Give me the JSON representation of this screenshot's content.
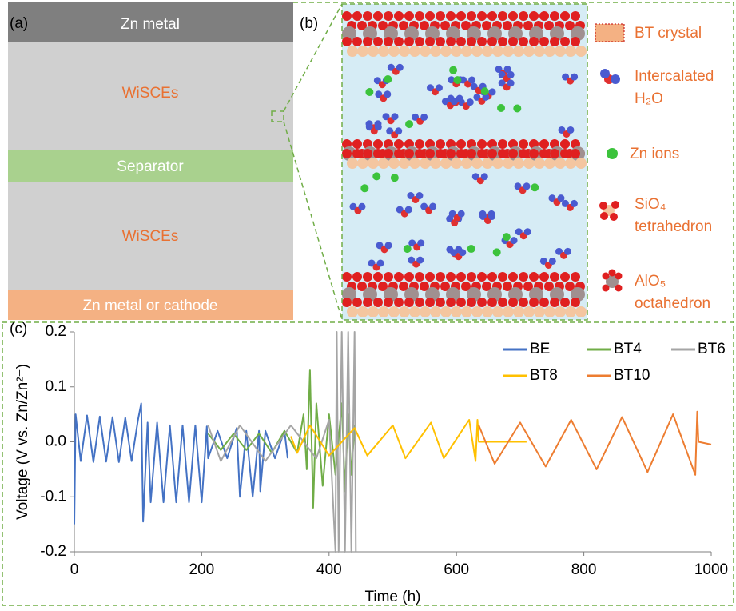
{
  "panel_a": {
    "label": "(a)",
    "layers": [
      "Zn metal",
      "WiSCEs",
      "Separator",
      "WiSCEs",
      "Zn metal or cathode"
    ]
  },
  "panel_b": {
    "label": "(b)",
    "legend": [
      {
        "lines": [
          "BT crystal"
        ]
      },
      {
        "lines": [
          "Intercalated",
          "H₂O"
        ]
      },
      {
        "lines": [
          "Zn ions"
        ]
      },
      {
        "lines": [
          "SiO₄",
          "tetrahedron"
        ]
      },
      {
        "lines": [
          "AlO₅",
          "octahedron"
        ]
      }
    ]
  },
  "chart_data": {
    "type": "line",
    "label": "(c)",
    "xlabel": "Time (h)",
    "ylabel": "Voltage (V vs. Zn/Zn²⁺)",
    "xlim": [
      0,
      1000
    ],
    "ylim": [
      -0.2,
      0.2
    ],
    "xticks": [
      0,
      200,
      400,
      600,
      800,
      1000
    ],
    "yticks": [
      -0.2,
      -0.1,
      {
        "value": 0,
        "label": "0.0"
      },
      0.1,
      0.2
    ],
    "legend": "upper right",
    "series": [
      {
        "name": "BE",
        "color": "#4472c4",
        "x": [
          0,
          2,
          10,
          20,
          30,
          40,
          50,
          60,
          70,
          80,
          90,
          100,
          105,
          108,
          115,
          120,
          130,
          140,
          150,
          160,
          170,
          180,
          190,
          200,
          208,
          210,
          225,
          240,
          255,
          260,
          270,
          280,
          290,
          292,
          300,
          315,
          330,
          335
        ],
        "values": [
          -0.15,
          0.05,
          -0.035,
          0.048,
          -0.037,
          0.046,
          -0.036,
          0.045,
          -0.037,
          0.044,
          -0.035,
          0.04,
          0.07,
          -0.145,
          0.035,
          -0.11,
          0.035,
          -0.11,
          0.03,
          -0.11,
          0.03,
          -0.11,
          0.03,
          -0.11,
          0.028,
          -0.03,
          0.02,
          -0.03,
          0.025,
          -0.1,
          0.02,
          -0.1,
          0.02,
          -0.09,
          0.02,
          -0.03,
          0.02,
          -0.03
        ]
      },
      {
        "name": "BT4",
        "color": "#70ad47",
        "x": [
          210,
          230,
          250,
          270,
          290,
          310,
          330,
          350,
          360,
          365,
          370,
          375,
          380,
          390,
          400,
          410,
          420,
          425,
          430,
          435,
          440
        ],
        "values": [
          0.015,
          -0.015,
          0.015,
          -0.015,
          0.015,
          -0.02,
          0.02,
          -0.02,
          0.05,
          -0.05,
          0.13,
          -0.12,
          0.07,
          -0.08,
          0.05,
          -0.06,
          0.07,
          -0.09,
          0.05,
          -0.06,
          0.03
        ]
      },
      {
        "name": "BT6",
        "color": "#a5a5a5",
        "x": [
          210,
          230,
          260,
          300,
          340,
          380,
          400,
          410,
          412,
          415,
          420,
          425,
          430,
          435,
          440,
          442
        ],
        "values": [
          0.03,
          -0.035,
          0.03,
          -0.035,
          0.03,
          -0.03,
          0.04,
          -0.2,
          0.2,
          -0.2,
          0.2,
          -0.2,
          0.2,
          -0.2,
          0.2,
          -0.2
        ]
      },
      {
        "name": "BT8",
        "color": "#ffc000",
        "x": [
          340,
          350,
          370,
          400,
          440,
          460,
          500,
          520,
          560,
          580,
          620,
          630,
          633,
          635,
          710
        ],
        "values": [
          0.01,
          -0.02,
          0.03,
          -0.025,
          0.025,
          -0.025,
          0.03,
          -0.03,
          0.035,
          -0.03,
          0.04,
          -0.035,
          0.04,
          0,
          0
        ]
      },
      {
        "name": "BT10",
        "color": "#ed7d31",
        "x": [
          635,
          660,
          700,
          740,
          780,
          820,
          860,
          900,
          940,
          975,
          978,
          980,
          1000
        ],
        "values": [
          0.03,
          -0.04,
          0.035,
          -0.045,
          0.04,
          -0.05,
          0.045,
          -0.055,
          0.05,
          -0.06,
          0.055,
          0,
          -0.005
        ]
      }
    ]
  }
}
